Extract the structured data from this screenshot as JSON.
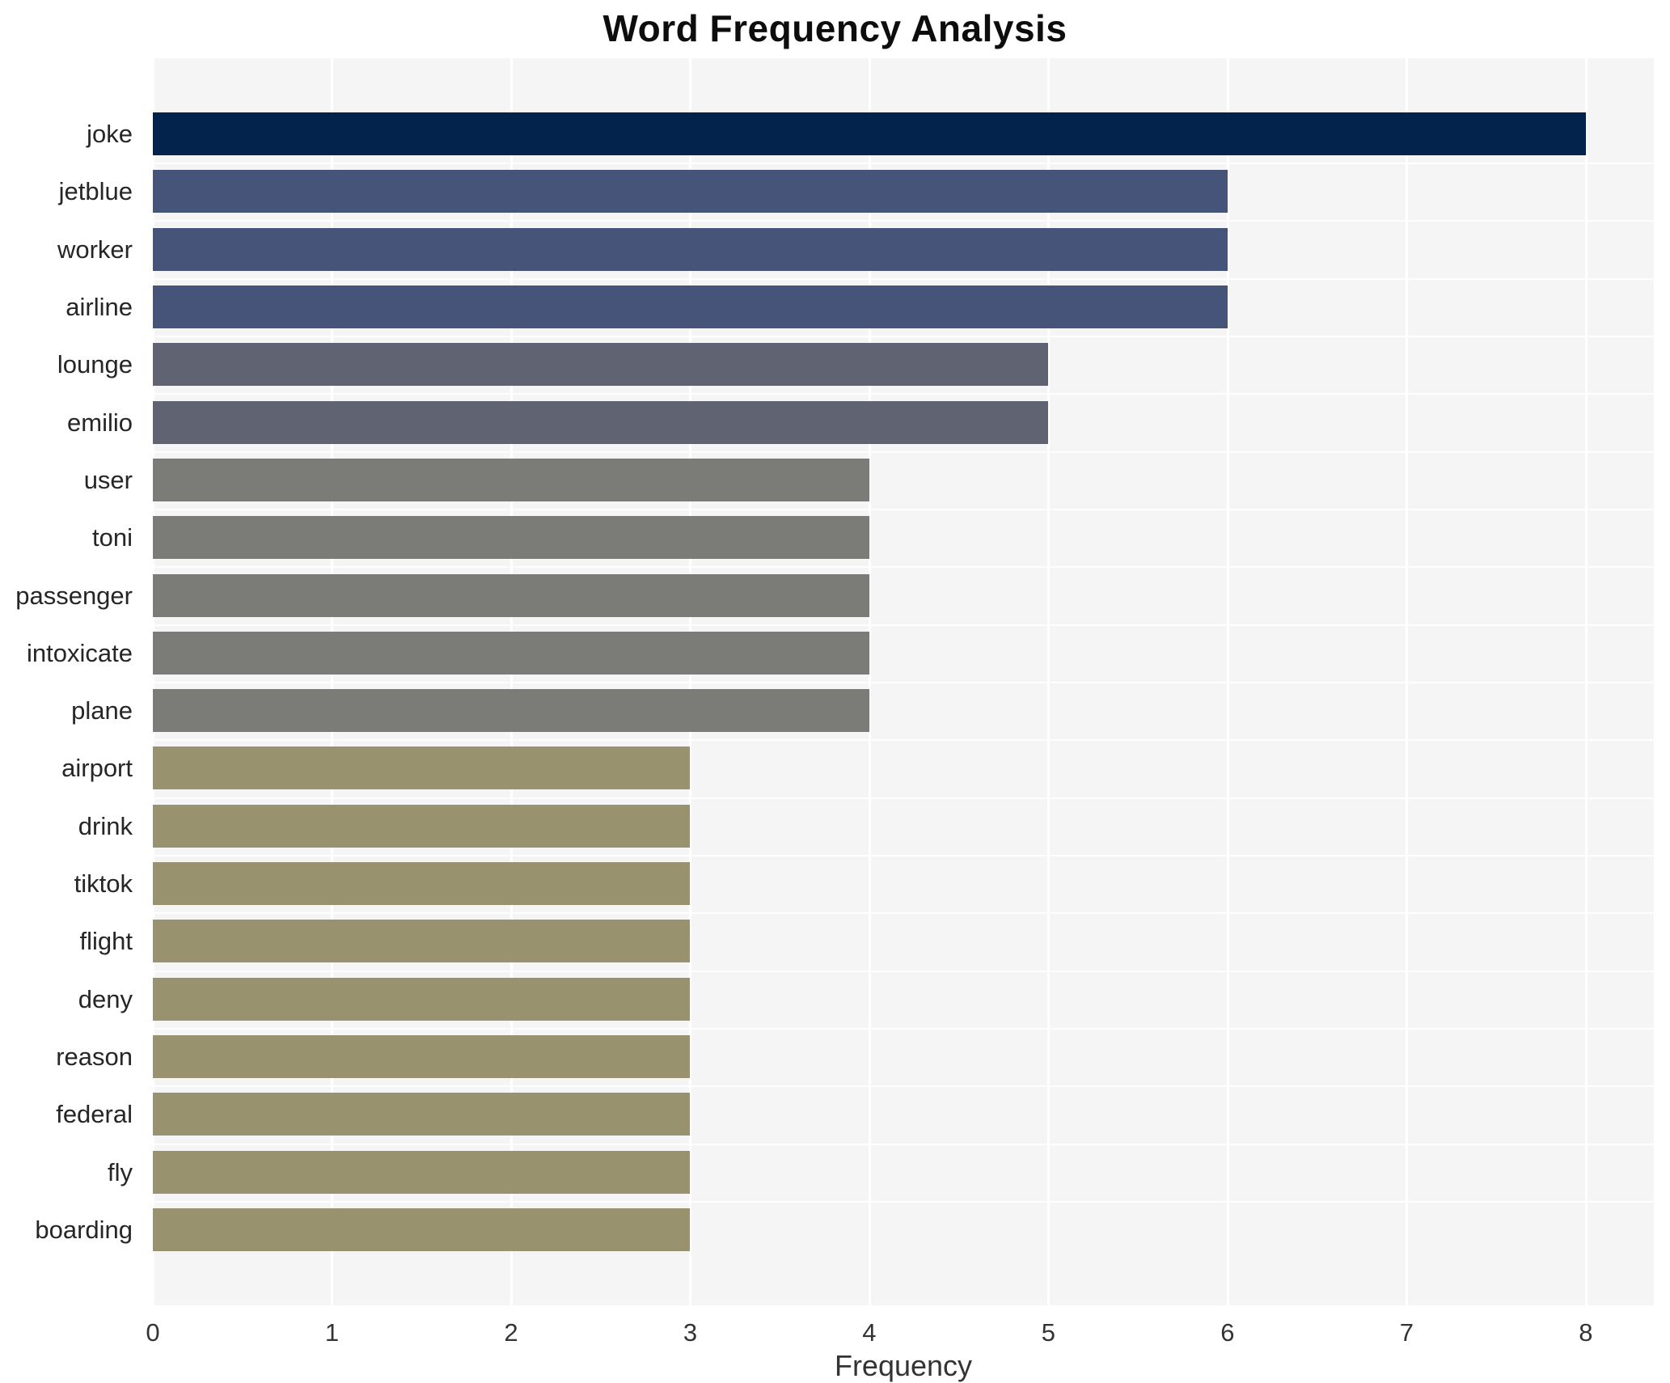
{
  "chart_data": {
    "type": "bar",
    "orientation": "horizontal",
    "title": "Word Frequency Analysis",
    "xlabel": "Frequency",
    "ylabel": "",
    "categories": [
      "joke",
      "jetblue",
      "worker",
      "airline",
      "lounge",
      "emilio",
      "user",
      "toni",
      "passenger",
      "intoxicate",
      "plane",
      "airport",
      "drink",
      "tiktok",
      "flight",
      "deny",
      "reason",
      "federal",
      "fly",
      "boarding"
    ],
    "values": [
      8,
      6,
      6,
      6,
      5,
      5,
      4,
      4,
      4,
      4,
      4,
      3,
      3,
      3,
      3,
      3,
      3,
      3,
      3,
      3
    ],
    "bar_colors": [
      "#03234d",
      "#46547a",
      "#46547a",
      "#46547a",
      "#5f6372",
      "#5f6372",
      "#7b7b78",
      "#7b7b78",
      "#7b7b78",
      "#7b7b78",
      "#7b7b78",
      "#99926f",
      "#99926f",
      "#99926f",
      "#99926f",
      "#99926f",
      "#99926f",
      "#99926f",
      "#99926f",
      "#99926f"
    ],
    "xticks": [
      0,
      1,
      2,
      3,
      4,
      5,
      6,
      7,
      8
    ],
    "xlim": [
      0,
      8.38
    ],
    "grid": "on",
    "legend": "none",
    "plot_background": "#f5f5f6",
    "gridline_color": "#ffffff",
    "title_color": "#0d0d0d",
    "tick_color": "#333333",
    "label_color": "#262626"
  }
}
